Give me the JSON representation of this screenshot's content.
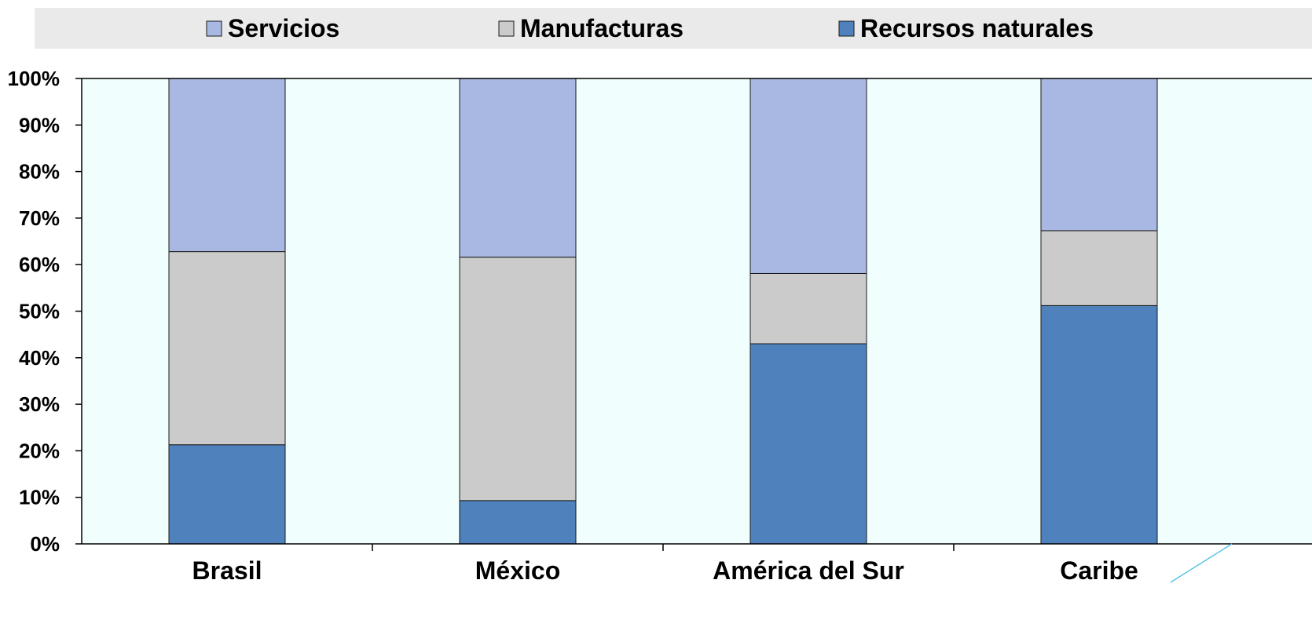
{
  "chart_data": {
    "type": "bar",
    "stacked": true,
    "categories": [
      "Brasil",
      "México",
      "América del Sur",
      "Caribe"
    ],
    "series": [
      {
        "name": "Recursos naturales",
        "values": [
          21.3,
          9.3,
          43.0,
          51.2
        ],
        "color": "#4f81bd"
      },
      {
        "name": "Manufacturas",
        "values": [
          41.5,
          52.3,
          15.1,
          16.1
        ],
        "color": "#cbcbcb"
      },
      {
        "name": "Servicios",
        "values": [
          37.2,
          38.4,
          41.9,
          32.7
        ],
        "color": "#a8b8e2"
      }
    ],
    "legend_order": [
      "Servicios",
      "Manufacturas",
      "Recursos naturales"
    ],
    "legend_position": "top",
    "ylim": [
      0,
      100
    ],
    "yticks": [
      "0%",
      "10%",
      "20%",
      "30%",
      "40%",
      "50%",
      "60%",
      "70%",
      "80%",
      "90%",
      "100%"
    ],
    "plot_background": "#f0fffe",
    "legend_background": "#eaeaea",
    "grid": false
  }
}
